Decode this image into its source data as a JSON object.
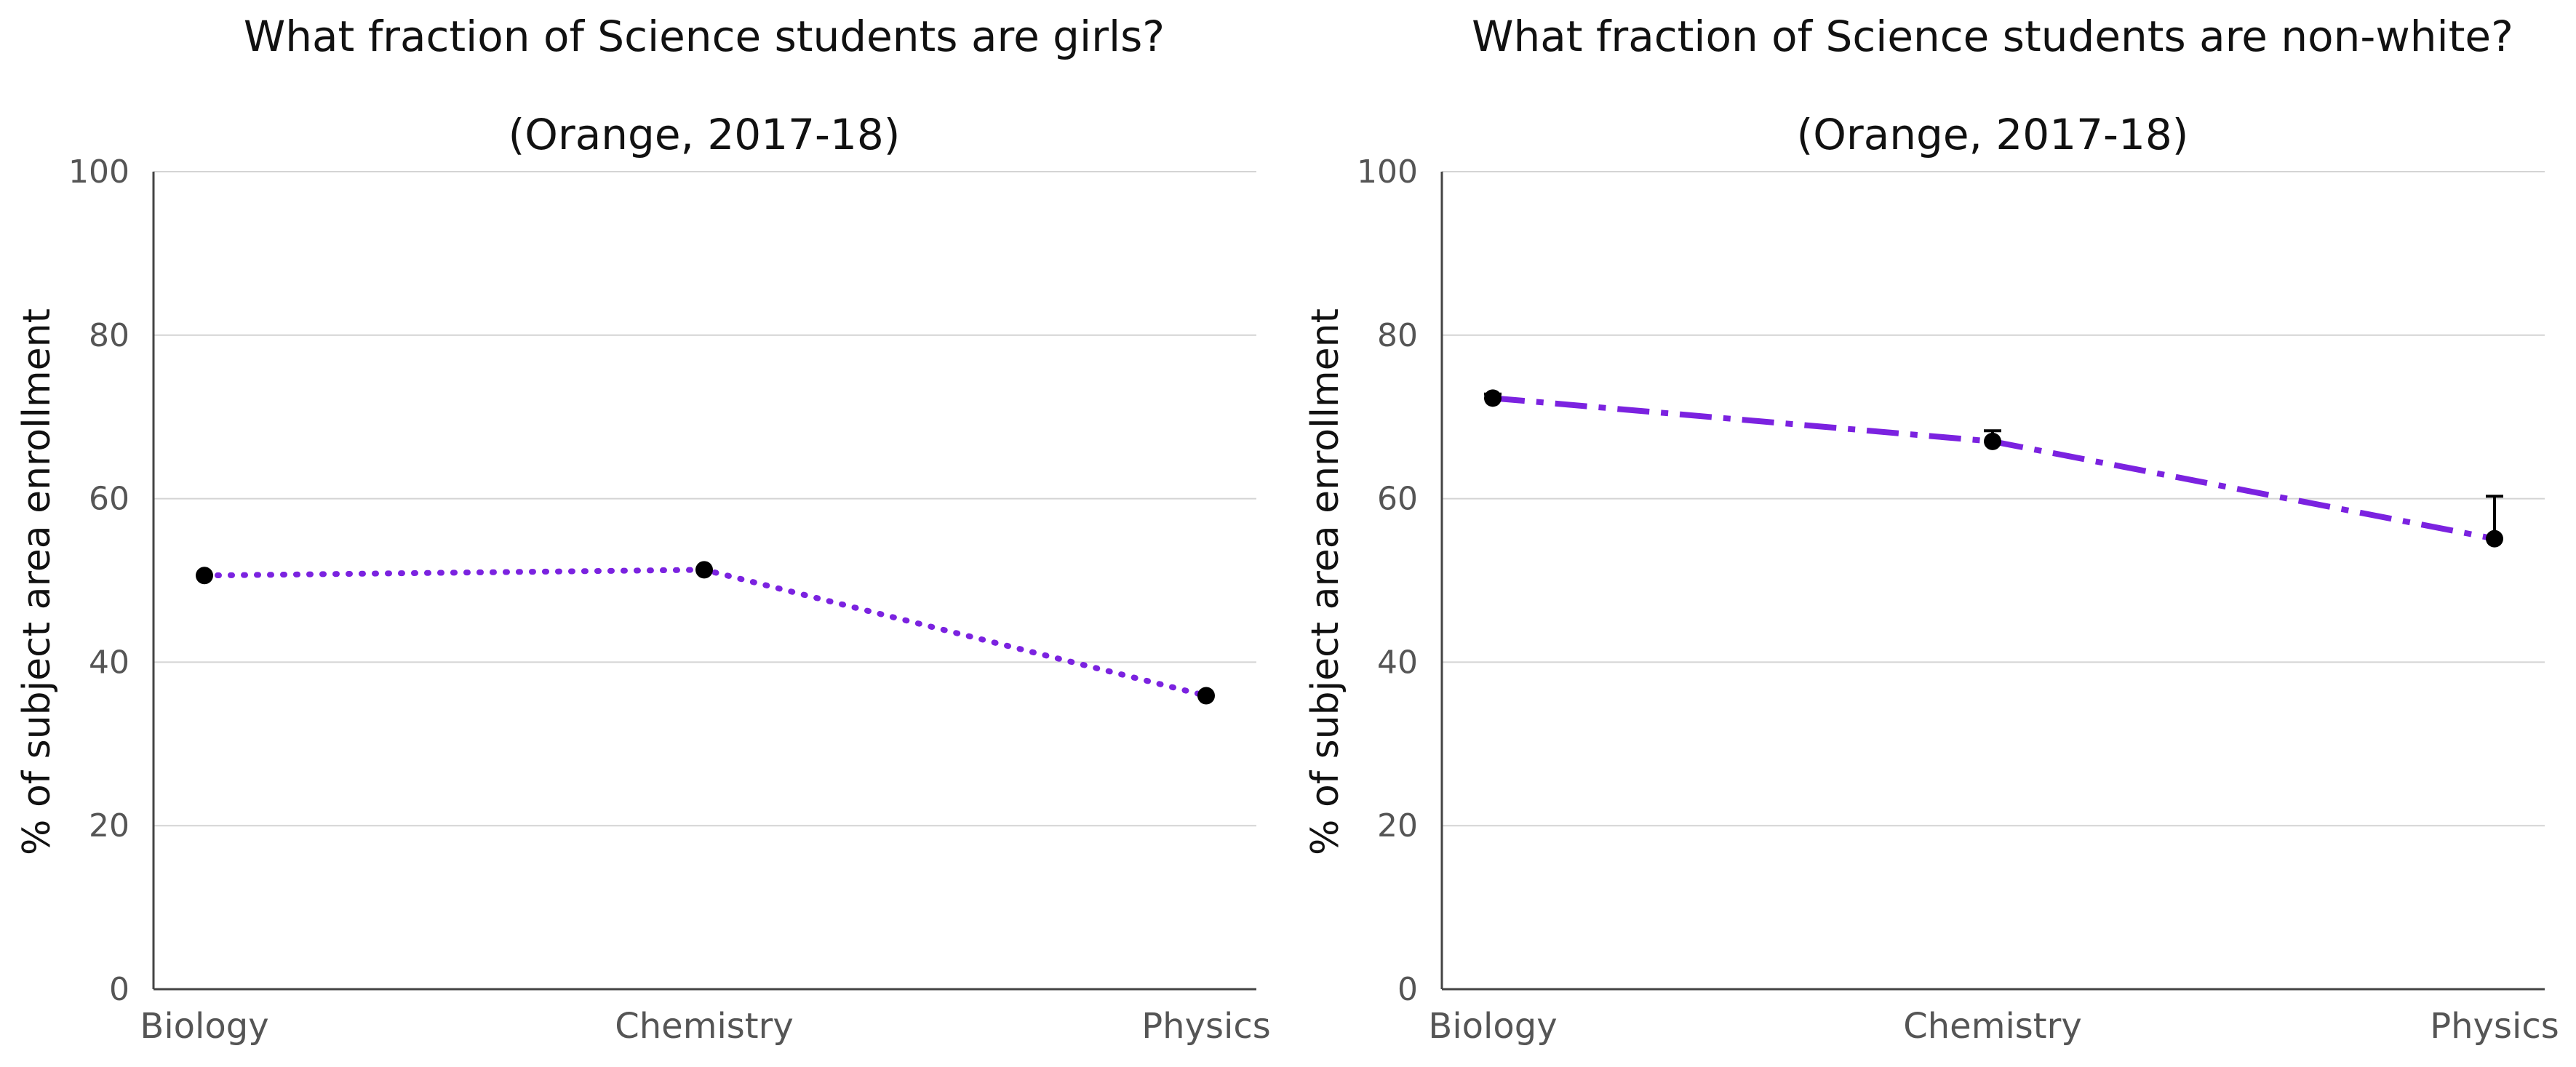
{
  "chart_data": [
    {
      "type": "line",
      "title": "What fraction of Science students are girls?",
      "subtitle": "(Orange, 2017-18)",
      "xlabel": "",
      "ylabel": "% of subject area enrollment",
      "categories": [
        "Biology",
        "Chemistry",
        "Physics"
      ],
      "series": [
        {
          "values": [
            50.6,
            51.3,
            35.9
          ],
          "line_style": "dotted"
        }
      ],
      "error_bars": null,
      "ylim": [
        0,
        100
      ],
      "yticks": [
        0,
        20,
        40,
        60,
        80,
        100
      ],
      "grid": true,
      "line_color": "#7b22e0",
      "marker_color": "#000000"
    },
    {
      "type": "line",
      "title": "What fraction of Science students are non-white?",
      "subtitle": "(Orange, 2017-18)",
      "xlabel": "",
      "ylabel": "% of subject area enrollment",
      "categories": [
        "Biology",
        "Chemistry",
        "Physics"
      ],
      "series": [
        {
          "values": [
            72.3,
            67.0,
            55.1
          ],
          "line_style": "dashdot"
        }
      ],
      "error_bars": [
        [
          72.3,
          72.8
        ],
        [
          67.0,
          68.3
        ],
        [
          55.1,
          60.3
        ]
      ],
      "ylim": [
        0,
        100
      ],
      "yticks": [
        0,
        20,
        40,
        60,
        80,
        100
      ],
      "grid": true,
      "line_color": "#7b22e0",
      "marker_color": "#000000"
    }
  ]
}
